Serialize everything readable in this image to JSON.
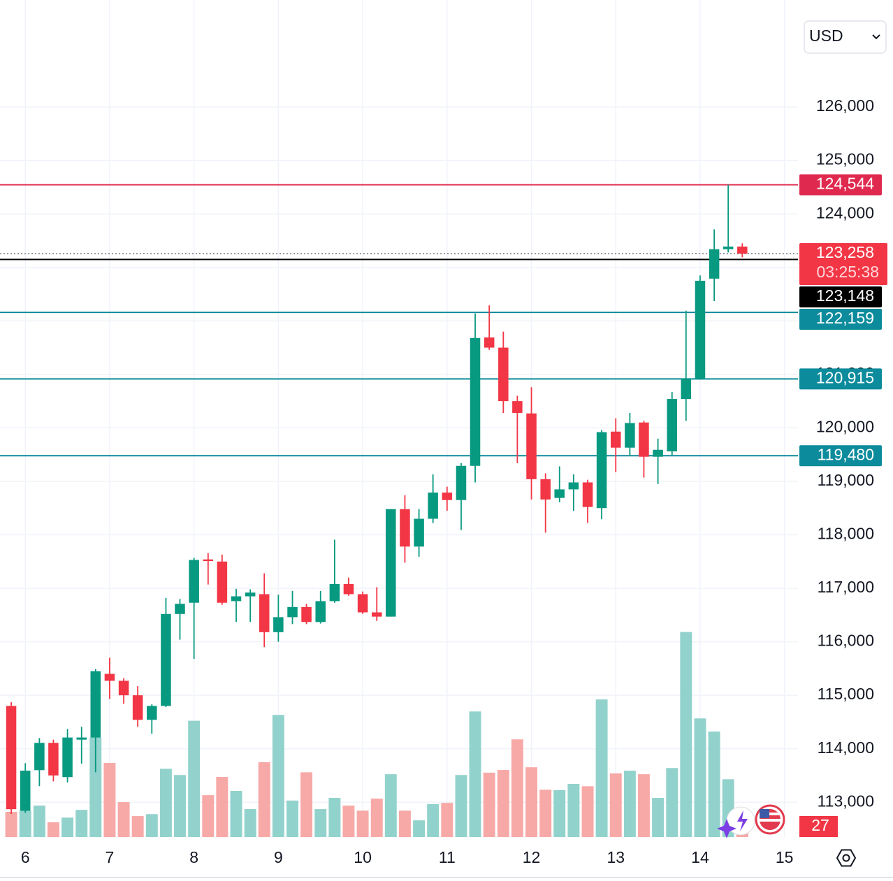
{
  "chart_data": {
    "type": "candlestick",
    "currency": "USD",
    "x": [
      5.833,
      6,
      6.167,
      6.333,
      6.5,
      6.667,
      6.833,
      7,
      7.167,
      7.333,
      7.5,
      7.667,
      7.833,
      8,
      8.167,
      8.333,
      8.5,
      8.667,
      8.833,
      9,
      9.167,
      9.333,
      9.5,
      9.667,
      9.833,
      10,
      10.167,
      10.333,
      10.5,
      10.667,
      10.833,
      11,
      11.167,
      11.333,
      11.5,
      11.667,
      11.833,
      12,
      12.167,
      12.333,
      12.5,
      12.667,
      12.833,
      13,
      13.167,
      13.333,
      13.5,
      13.667,
      13.833,
      14,
      14.167,
      14.333,
      14.5
    ],
    "open": [
      114800,
      112840,
      113600,
      114110,
      113470,
      114170,
      114210,
      115400,
      115270,
      115000,
      114540,
      114800,
      116520,
      116730,
      117540,
      117500,
      116760,
      116850,
      116890,
      116180,
      116460,
      116650,
      116370,
      116760,
      117080,
      116890,
      116550,
      116470,
      118480,
      117780,
      118300,
      118790,
      118650,
      119290,
      121690,
      121500,
      120500,
      120270,
      119040,
      118690,
      118850,
      118980,
      118500,
      119930,
      119630,
      120100,
      119460,
      119560,
      120540,
      120920,
      122790,
      123340,
      123390
    ],
    "high": [
      114870,
      113730,
      114200,
      114170,
      114370,
      114410,
      115490,
      115700,
      115320,
      115170,
      114830,
      116820,
      116800,
      117570,
      117660,
      117630,
      116990,
      116980,
      117280,
      116880,
      116950,
      116710,
      116950,
      117910,
      117200,
      116940,
      117020,
      118480,
      118740,
      118480,
      119130,
      118900,
      119340,
      122140,
      122290,
      121800,
      120600,
      120760,
      119150,
      119280,
      119130,
      119030,
      119960,
      120180,
      120280,
      120130,
      119800,
      120670,
      122190,
      122850,
      123710,
      124544,
      123450
    ],
    "low": [
      112780,
      112800,
      113300,
      113390,
      113370,
      113720,
      113560,
      114930,
      114840,
      114410,
      114280,
      114780,
      116040,
      115680,
      117070,
      116690,
      116370,
      116370,
      115900,
      116000,
      116330,
      116330,
      116340,
      116730,
      116860,
      116520,
      116390,
      116470,
      117480,
      117590,
      118220,
      118450,
      118090,
      118980,
      121460,
      120280,
      119340,
      118660,
      118040,
      118610,
      118450,
      118220,
      118290,
      119170,
      119470,
      119070,
      118950,
      119470,
      120130,
      120900,
      122370,
      123280,
      123190
    ],
    "close": [
      112870,
      113590,
      114110,
      113500,
      114210,
      114210,
      115450,
      115270,
      115000,
      114540,
      114800,
      116520,
      116710,
      117530,
      117510,
      116730,
      116850,
      116920,
      116180,
      116460,
      116650,
      116370,
      116760,
      117080,
      116890,
      116550,
      116470,
      118480,
      117780,
      118300,
      118790,
      118650,
      119290,
      121680,
      121500,
      120500,
      120280,
      119040,
      118660,
      118850,
      118980,
      118520,
      119920,
      119630,
      120090,
      119460,
      119590,
      120540,
      120920,
      122750,
      123340,
      123390,
      123258
    ],
    "volume": [
      65,
      68,
      81,
      38,
      50,
      70,
      257,
      191,
      90,
      54,
      59,
      176,
      160,
      300,
      108,
      155,
      119,
      72,
      193,
      315,
      94,
      167,
      72,
      101,
      81,
      68,
      99,
      162,
      68,
      43,
      85,
      88,
      160,
      324,
      166,
      173,
      252,
      180,
      122,
      121,
      137,
      131,
      355,
      164,
      171,
      162,
      101,
      178,
      529,
      306,
      272,
      149,
      27
    ],
    "up_color": "#089981",
    "down_color": "#f23645",
    "volume_up_color": "#92d2cc",
    "volume_down_color": "#f7a9a7",
    "xlim": [
      5.7,
      15.16
    ],
    "xticks": [
      6,
      7,
      8,
      9,
      10,
      11,
      12,
      13,
      14,
      15
    ],
    "ylim": [
      112350,
      128000
    ],
    "yticks": [
      {
        "value": 113000,
        "label": "113,000"
      },
      {
        "value": 114000,
        "label": "114,000"
      },
      {
        "value": 115000,
        "label": "115,000"
      },
      {
        "value": 116000,
        "label": "116,000"
      },
      {
        "value": 117000,
        "label": "117,000"
      },
      {
        "value": 118000,
        "label": "118,000"
      },
      {
        "value": 119000,
        "label": "119,000"
      },
      {
        "value": 120000,
        "label": "120,000"
      },
      {
        "value": 121000,
        "label": "121,000"
      },
      {
        "value": 122000,
        "label": "122,000"
      },
      {
        "value": 123000,
        "label": "123,000"
      },
      {
        "value": 124000,
        "label": "124,000"
      },
      {
        "value": 125000,
        "label": "125,000"
      },
      {
        "value": 126000,
        "label": "126,000"
      }
    ],
    "volume_lim": [
      0,
      2160
    ],
    "grid": true,
    "price_lines": [
      {
        "value": 124544,
        "label": "124,544",
        "color": "#e0294f",
        "style": "solid"
      },
      {
        "value": 123258,
        "label": "123,258",
        "countdown": "03:25:38",
        "color": "#f23645",
        "style": "dotted"
      },
      {
        "value": 123148,
        "label": "123,148",
        "color": "#000000",
        "style": "solid"
      },
      {
        "value": 122159,
        "label": "122,159",
        "color": "#0c8b9c",
        "style": "solid"
      },
      {
        "value": 120915,
        "label": "120,915",
        "color": "#0c8b9c",
        "style": "solid"
      },
      {
        "value": 119480,
        "label": "119,480",
        "color": "#0c8b9c",
        "style": "solid"
      }
    ]
  }
}
